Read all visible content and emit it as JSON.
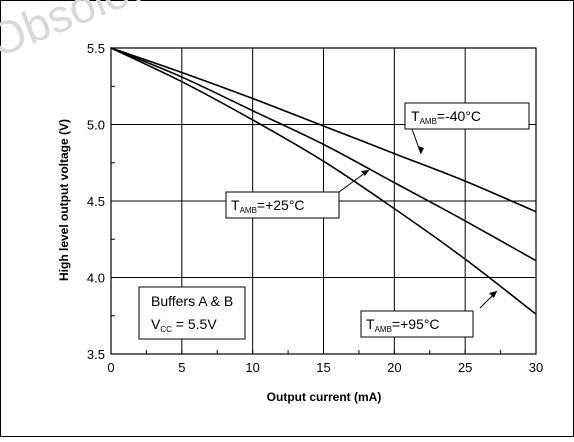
{
  "watermark": "Obsolete",
  "chart_data": {
    "type": "line",
    "xlabel": "Output current (mA)",
    "ylabel": "High level output voltage (V)",
    "xlim": [
      0,
      30
    ],
    "ylim": [
      3.5,
      5.5
    ],
    "xticks": [
      0,
      5,
      10,
      15,
      20,
      25,
      30
    ],
    "yticks": [
      3.5,
      4.0,
      4.5,
      5.0,
      5.5
    ],
    "grid": true,
    "series": [
      {
        "name": "T_AMB=-40°C",
        "x": [
          0,
          5,
          10,
          15,
          20,
          25,
          30
        ],
        "y": [
          5.5,
          5.34,
          5.17,
          4.99,
          4.81,
          4.63,
          4.43
        ]
      },
      {
        "name": "T_AMB=+25°C",
        "x": [
          0,
          5,
          10,
          15,
          20,
          25,
          30
        ],
        "y": [
          5.5,
          5.31,
          5.09,
          4.87,
          4.62,
          4.37,
          4.11
        ]
      },
      {
        "name": "T_AMB=+95°C",
        "x": [
          0,
          5,
          10,
          15,
          20,
          25,
          30
        ],
        "y": [
          5.5,
          5.28,
          5.03,
          4.76,
          4.45,
          4.12,
          3.76
        ]
      }
    ],
    "labels": {
      "m40": {
        "main": "T",
        "sub": "AMB",
        "rest": "=-40°C"
      },
      "p25": {
        "main": "T",
        "sub": "AMB",
        "rest": "=+25°C"
      },
      "p95": {
        "main": "T",
        "sub": "AMB",
        "rest": "=+95°C"
      }
    },
    "info_box": {
      "line1": "Buffers A & B",
      "vcc_main": "V",
      "vcc_sub": "CC",
      "vcc_rest": " = 5.5V"
    }
  }
}
